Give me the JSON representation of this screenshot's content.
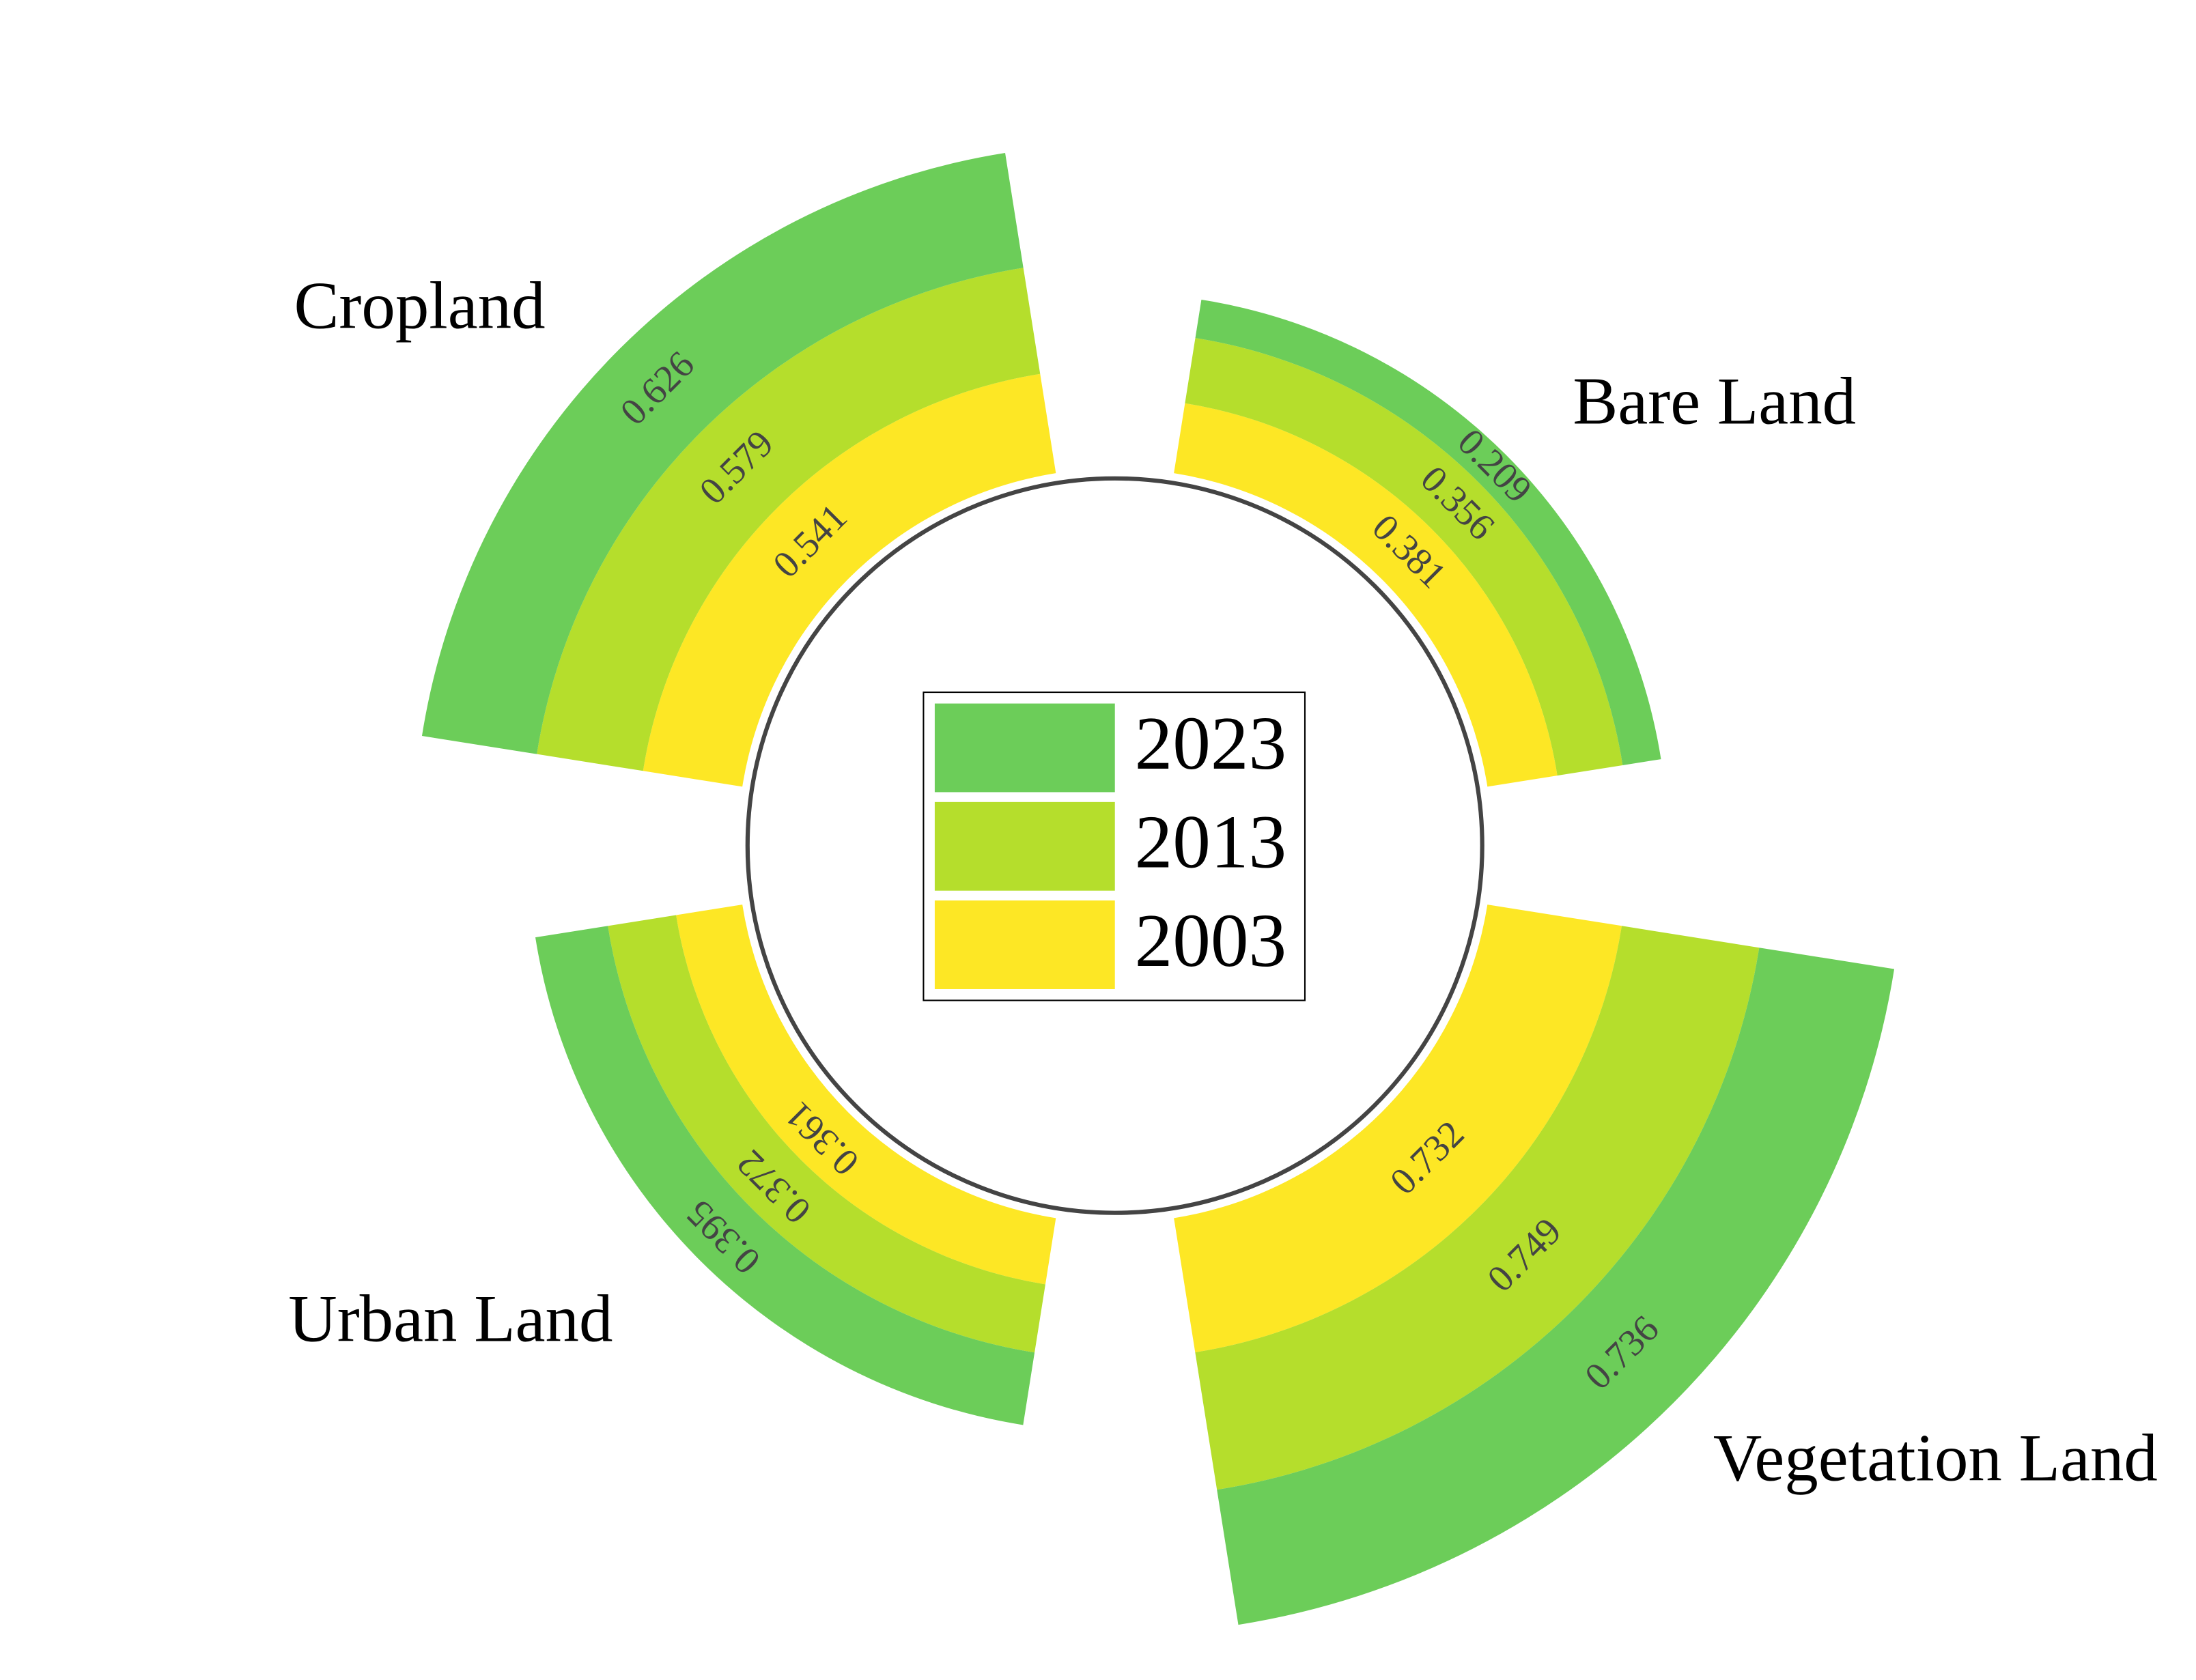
{
  "chart_data": {
    "type": "polar_stacked_bar",
    "categories": [
      "Cropland",
      "Bare Land",
      "Vegetation Land",
      "Urban Land"
    ],
    "series": [
      {
        "name": "2023",
        "color": "#6ccd59",
        "values": [
          0.626,
          0.209,
          0.736,
          0.395
        ]
      },
      {
        "name": "2013",
        "color": "#b5de2c",
        "values": [
          0.579,
          0.356,
          0.749,
          0.372
        ]
      },
      {
        "name": "2003",
        "color": "#fde725",
        "values": [
          0.541,
          0.381,
          0.732,
          0.361
        ]
      }
    ]
  }
}
